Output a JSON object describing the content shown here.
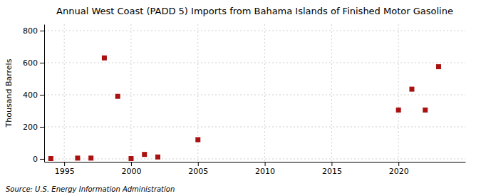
{
  "chart_data": {
    "type": "scatter",
    "title": "Annual West Coast (PADD 5) Imports from Bahama Islands of Finished Motor Gasoline",
    "y_label": "Thousand Barrels",
    "source": "Source: U.S. Energy Information Administration",
    "x": [
      1994,
      1996,
      1997,
      1998,
      1999,
      2000,
      2001,
      2002,
      2005,
      2020,
      2021,
      2022,
      2023
    ],
    "values": [
      2,
      5,
      5,
      630,
      390,
      2,
      28,
      12,
      120,
      305,
      435,
      305,
      575
    ],
    "color": "#aa1111",
    "marker": "square",
    "xlim": [
      1993.5,
      2025
    ],
    "ylim": [
      -18,
      840
    ],
    "xticks": [
      1995,
      2000,
      2005,
      2010,
      2015,
      2020
    ],
    "yticks": [
      0,
      200,
      400,
      600,
      800
    ],
    "grid": true
  }
}
